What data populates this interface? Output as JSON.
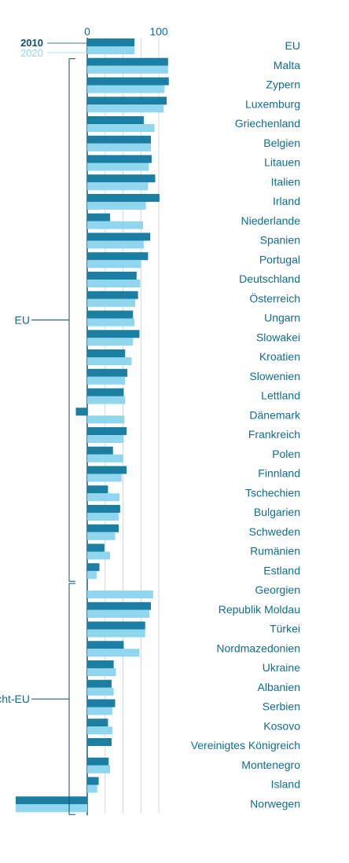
{
  "chart_data": {
    "type": "bar",
    "orientation": "horizontal",
    "xlim": [
      -100,
      115
    ],
    "x_ticks": [
      0,
      100
    ],
    "grid": true,
    "series": [
      {
        "name": "2010",
        "color": "#1a7fa3"
      },
      {
        "name": "2020",
        "color": "#8fd6ee"
      }
    ],
    "groups": [
      {
        "label": "EU",
        "categories": [
          "Malta",
          "Zypern",
          "Luxemburg",
          "Griechenland",
          "Belgien",
          "Litauen",
          "Italien",
          "Irland",
          "Niederlande",
          "Spanien",
          "Portugal",
          "Deutschland",
          "Österreich",
          "Ungarn",
          "Slowakei",
          "Kroatien",
          "Slowenien",
          "Lettland",
          "Dänemark",
          "Frankreich",
          "Polen",
          "Finnland",
          "Tschechien",
          "Bulgarien",
          "Schweden",
          "Rumänien",
          "Estland"
        ],
        "values_2010": [
          113,
          114,
          111,
          79,
          89,
          90,
          95,
          101,
          32,
          88,
          85,
          69,
          71,
          64,
          73,
          53,
          56,
          51,
          -16,
          55,
          36,
          55,
          29,
          46,
          44,
          24,
          17
        ],
        "values_2020": [
          113,
          108,
          107,
          94,
          89,
          86,
          85,
          82,
          78,
          79,
          75,
          74,
          67,
          66,
          64,
          62,
          53,
          53,
          52,
          51,
          50,
          48,
          45,
          44,
          39,
          32,
          13
        ]
      },
      {
        "label": "Nicht-EU",
        "categories": [
          "Georgien",
          "Republik Moldau",
          "Türkei",
          "Nordmazedonien",
          "Ukraine",
          "Albanien",
          "Serbien",
          "Kosovo",
          "Vereinigtes Königreich",
          "Montenegro",
          "Island",
          "Norwegen"
        ],
        "values_2010": [
          null,
          89,
          81,
          51,
          37,
          34,
          39,
          29,
          34,
          30,
          16,
          -100
        ],
        "values_2020": [
          92,
          87,
          81,
          73,
          40,
          37,
          35,
          35,
          null,
          32,
          14,
          -100
        ]
      }
    ],
    "eu_average": {
      "label": "EU",
      "value_2010": 66,
      "value_2020": 66
    }
  }
}
